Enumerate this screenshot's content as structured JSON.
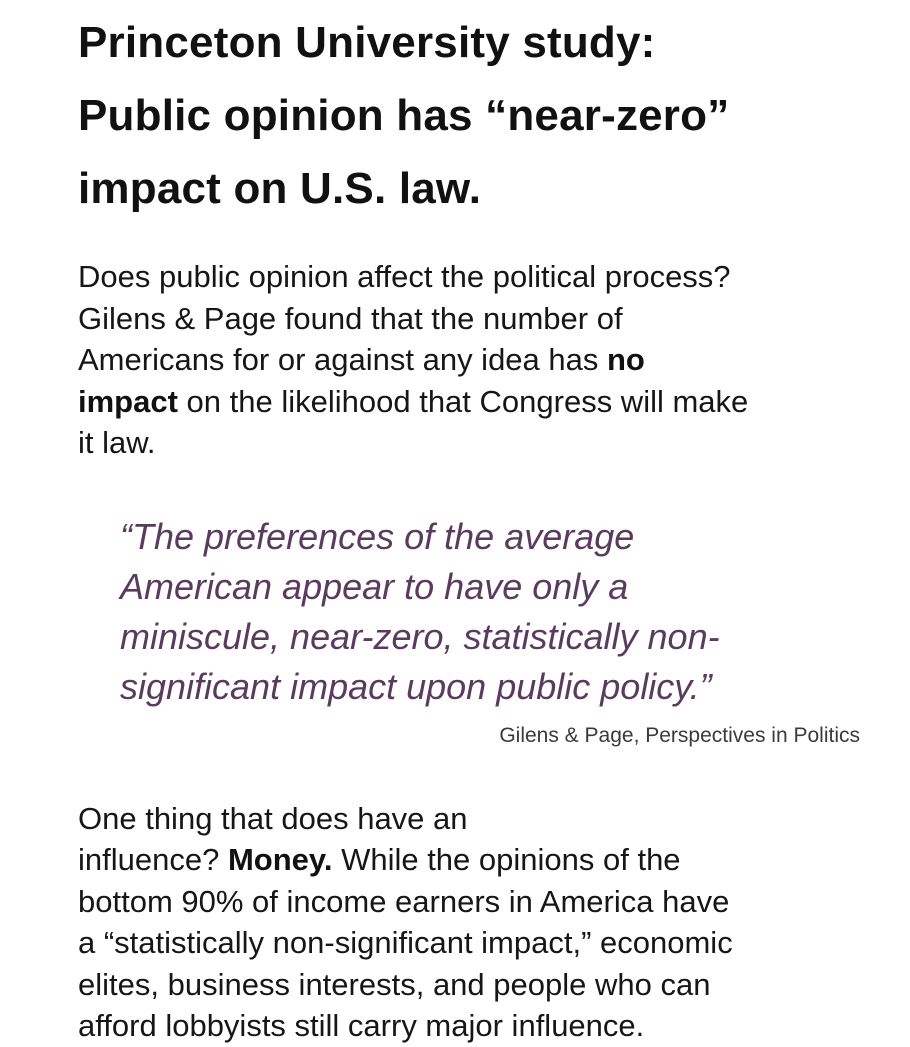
{
  "article": {
    "headline": [
      "Princeton University study:",
      "Public opinion has “near-zero”",
      "impact on U.S. law."
    ],
    "intro": {
      "line1": "Does public opinion affect the political process?",
      "line2": "Gilens & Page found that the number of",
      "line3_pre": "Americans for or against any idea has ",
      "line3_bold": "no",
      "line4_bold": "impact",
      "line4_post": " on the likelihood that Congress will make",
      "line5": "it law."
    },
    "quote": {
      "lines": [
        "“The preferences of the average",
        "American appear to have only a",
        "miniscule, near-zero, statistically non-",
        "significant impact upon public policy.”"
      ],
      "attribution": "Gilens & Page, Perspectives in Politics"
    },
    "body": {
      "line1": "One thing that does have an",
      "line2_pre": "influence? ",
      "line2_bold": "Money.",
      "line2_post": " While the opinions of the",
      "line3": "bottom 90% of income earners in America have",
      "line4": "a “statistically non-significant impact,” economic",
      "line5": "elites, business interests, and people who can",
      "line6": "afford lobbyists still carry major influence."
    }
  },
  "colors": {
    "text": "#161616",
    "quote": "#5a3a5e",
    "attribution": "#3a3a3a",
    "background": "#ffffff"
  }
}
